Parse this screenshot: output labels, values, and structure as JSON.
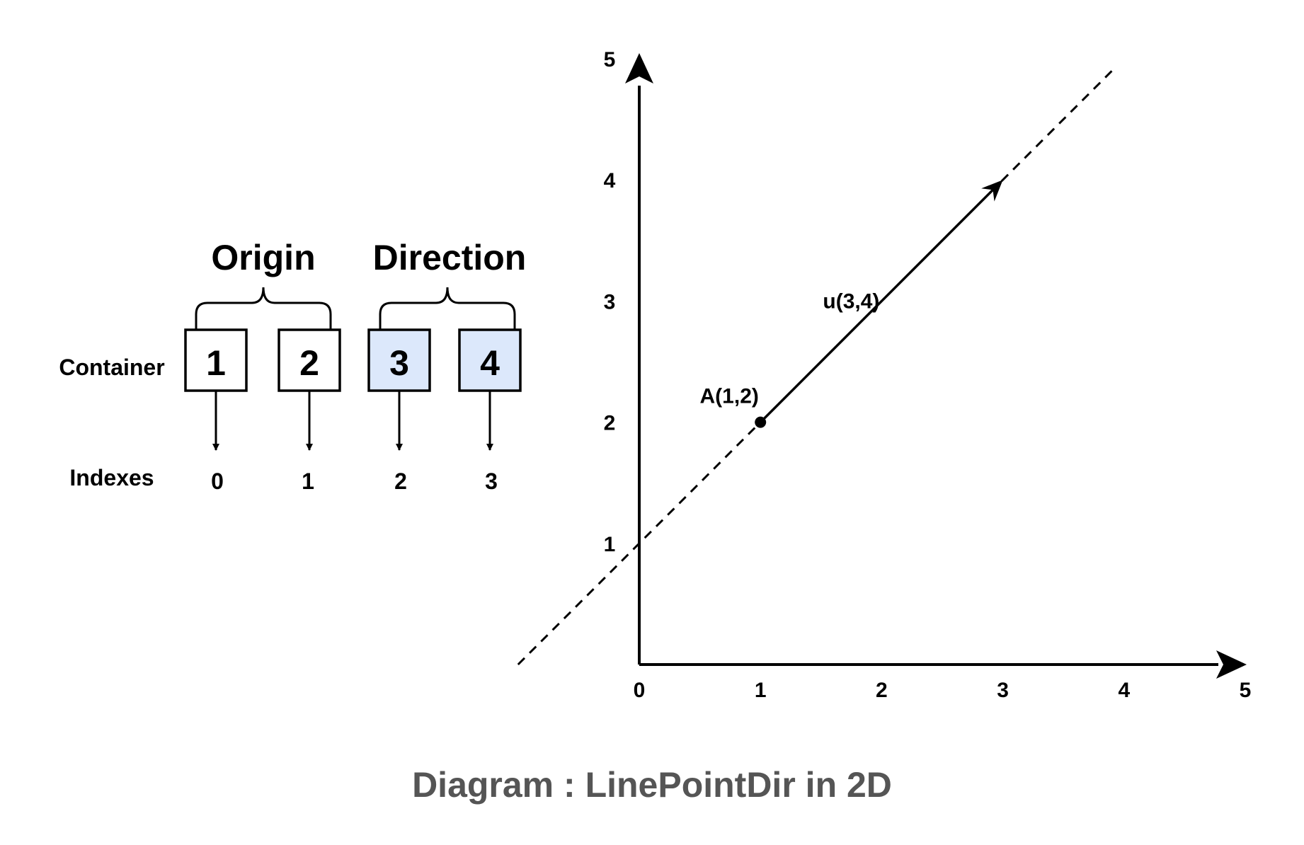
{
  "colors": {
    "stroke": "#000000",
    "direction_fill": "#dce8fb",
    "origin_fill": "#ffffff",
    "caption": "#555555"
  },
  "container": {
    "row_label": "Container",
    "index_label": "Indexes",
    "groups": [
      {
        "label": "Origin"
      },
      {
        "label": "Direction"
      }
    ],
    "cells": [
      {
        "value": "1",
        "index": "0",
        "group": "Origin"
      },
      {
        "value": "2",
        "index": "1",
        "group": "Origin"
      },
      {
        "value": "3",
        "index": "2",
        "group": "Direction"
      },
      {
        "value": "4",
        "index": "3",
        "group": "Direction"
      }
    ]
  },
  "plot": {
    "x_ticks": [
      "0",
      "1",
      "2",
      "3",
      "4",
      "5"
    ],
    "y_ticks": [
      "1",
      "2",
      "3",
      "4",
      "5"
    ],
    "x_range": [
      0,
      5
    ],
    "y_range": [
      0,
      5
    ],
    "point": {
      "label": "A(1,2)",
      "x": 1,
      "y": 2
    },
    "vector": {
      "label": "u(3,4)",
      "from": [
        1,
        2
      ],
      "to": [
        3,
        4
      ]
    },
    "line_style": "dashed"
  },
  "caption": "Diagram : LinePointDir in 2D"
}
